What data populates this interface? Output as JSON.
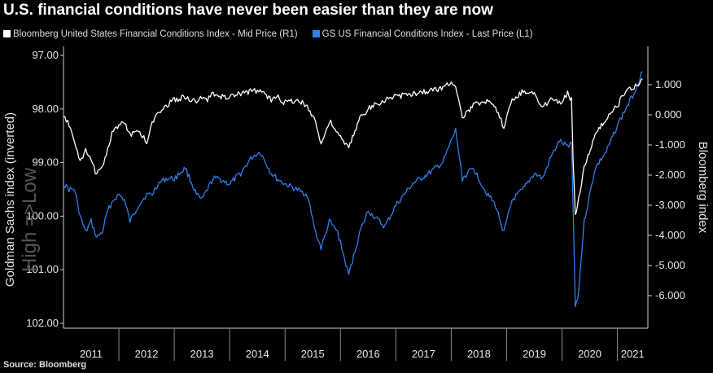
{
  "title": "U.S. financial conditions have never been easier than they are now",
  "source": "Source: Bloomberg",
  "colors": {
    "background": "#000000",
    "bloomberg": "#ffffff",
    "gs": "#2f7fe8",
    "axis": "#cfcfcf"
  },
  "chart_data": {
    "type": "line",
    "legend_position": "top-left",
    "grid": false,
    "x_ticks": [
      "2011",
      "2012",
      "2013",
      "2014",
      "2015",
      "2016",
      "2017",
      "2018",
      "2019",
      "2020",
      "2021"
    ],
    "x_range": [
      2011.0,
      2021.55
    ],
    "left_axis": {
      "label": "Goldman Sachs index (inverted)",
      "annotation": "High =>Low",
      "ticks": [
        "97.00",
        "98.00",
        "99.00",
        "100.00",
        "101.00",
        "102.00"
      ],
      "range": [
        97.0,
        102.0
      ],
      "inverted": true
    },
    "right_axis": {
      "label": "Bloomberg index",
      "ticks": [
        "1.000",
        "0.000",
        "-1.000",
        "-2.000",
        "-3.000",
        "-4.000",
        "-5.000",
        "-6.000"
      ],
      "range": [
        -7.08,
        2.27
      ]
    },
    "series": [
      {
        "name": "Bloomberg United States Financial Conditions Index - Mid Price (R1)",
        "axis": "right",
        "x": [
          2011.0,
          2011.1,
          2011.2,
          2011.3,
          2011.4,
          2011.5,
          2011.6,
          2011.7,
          2011.8,
          2011.9,
          2012.0,
          2012.1,
          2012.2,
          2012.35,
          2012.5,
          2012.6,
          2012.7,
          2012.85,
          2013.0,
          2013.2,
          2013.4,
          2013.5,
          2013.6,
          2013.7,
          2013.8,
          2014.0,
          2014.2,
          2014.4,
          2014.55,
          2014.75,
          2014.85,
          2015.0,
          2015.2,
          2015.4,
          2015.55,
          2015.65,
          2015.8,
          2015.95,
          2016.05,
          2016.15,
          2016.35,
          2016.5,
          2016.8,
          2017.0,
          2017.3,
          2017.6,
          2017.85,
          2018.0,
          2018.08,
          2018.2,
          2018.4,
          2018.6,
          2018.8,
          2018.95,
          2019.1,
          2019.3,
          2019.5,
          2019.65,
          2019.8,
          2019.95,
          2020.1,
          2020.17,
          2020.2,
          2020.24,
          2020.3,
          2020.4,
          2020.6,
          2020.8,
          2021.0,
          2021.15,
          2021.3,
          2021.45
        ],
        "values": [
          -0.1,
          -0.3,
          -0.9,
          -1.6,
          -1.2,
          -1.5,
          -2.0,
          -1.7,
          -1.1,
          -0.5,
          -0.4,
          -0.2,
          -0.7,
          -0.5,
          -0.9,
          -0.3,
          0.1,
          0.3,
          0.5,
          0.6,
          0.4,
          0.6,
          0.5,
          0.7,
          0.6,
          0.6,
          0.7,
          0.8,
          0.8,
          0.5,
          0.6,
          0.4,
          0.5,
          0.3,
          -0.2,
          -1.0,
          -0.2,
          -0.6,
          -0.9,
          -1.1,
          -0.1,
          0.2,
          0.5,
          0.6,
          0.7,
          0.8,
          0.9,
          1.1,
          1.0,
          -0.1,
          0.3,
          0.5,
          0.2,
          -0.4,
          0.5,
          0.8,
          0.7,
          0.2,
          0.6,
          0.4,
          0.7,
          0.5,
          -1.5,
          -3.3,
          -2.8,
          -1.7,
          -0.7,
          -0.1,
          0.3,
          0.8,
          0.9,
          1.2
        ]
      },
      {
        "name": "GS US Financial Conditions Index - Last Price (L1)",
        "axis": "left",
        "x": [
          2011.0,
          2011.1,
          2011.2,
          2011.3,
          2011.4,
          2011.5,
          2011.6,
          2011.7,
          2011.8,
          2011.9,
          2012.0,
          2012.1,
          2012.2,
          2012.35,
          2012.5,
          2012.6,
          2012.7,
          2012.85,
          2013.0,
          2013.2,
          2013.4,
          2013.5,
          2013.6,
          2013.7,
          2013.8,
          2014.0,
          2014.2,
          2014.4,
          2014.55,
          2014.75,
          2014.85,
          2015.0,
          2015.2,
          2015.4,
          2015.55,
          2015.65,
          2015.8,
          2015.95,
          2016.05,
          2016.15,
          2016.35,
          2016.5,
          2016.8,
          2017.0,
          2017.3,
          2017.6,
          2017.85,
          2018.0,
          2018.08,
          2018.2,
          2018.4,
          2018.6,
          2018.8,
          2018.95,
          2019.1,
          2019.3,
          2019.5,
          2019.65,
          2019.8,
          2019.95,
          2020.1,
          2020.17,
          2020.2,
          2020.24,
          2020.3,
          2020.4,
          2020.6,
          2020.8,
          2021.0,
          2021.15,
          2021.3,
          2021.45
        ],
        "values": [
          99.4,
          99.5,
          99.5,
          100.0,
          100.3,
          100.1,
          100.4,
          100.3,
          99.9,
          99.7,
          99.6,
          99.7,
          100.1,
          99.8,
          99.6,
          99.6,
          99.4,
          99.3,
          99.3,
          99.1,
          99.6,
          99.7,
          99.5,
          99.3,
          99.3,
          99.4,
          99.2,
          98.9,
          98.8,
          99.2,
          99.3,
          99.4,
          99.5,
          99.6,
          100.3,
          100.6,
          100.1,
          100.3,
          100.7,
          101.1,
          100.3,
          99.9,
          100.2,
          99.8,
          99.4,
          99.2,
          99.0,
          98.6,
          98.4,
          99.3,
          99.1,
          99.5,
          99.8,
          100.3,
          99.7,
          99.5,
          99.2,
          99.3,
          98.9,
          98.6,
          98.7,
          98.6,
          99.8,
          101.7,
          101.4,
          100.1,
          99.1,
          98.8,
          98.3,
          98.0,
          97.7,
          97.3
        ]
      }
    ]
  }
}
